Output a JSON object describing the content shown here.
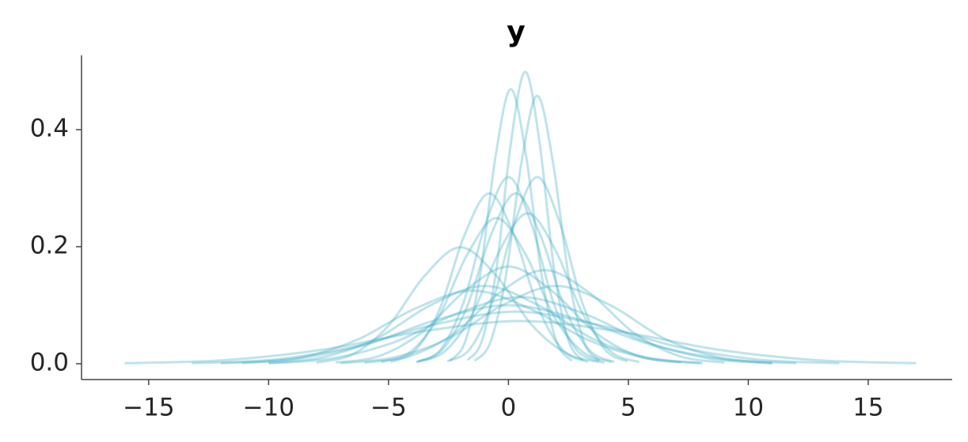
{
  "chart_data": {
    "type": "line",
    "title": "y",
    "color": "#46aec7",
    "line_alpha": 0.35,
    "xlim": [
      -17.8,
      18.5
    ],
    "ylim": [
      -0.027,
      0.527
    ],
    "xticks": [
      {
        "value": -15,
        "label": "−15"
      },
      {
        "value": -10,
        "label": "−10"
      },
      {
        "value": -5,
        "label": "−5"
      },
      0,
      5,
      10,
      15
    ],
    "yticks": [
      {
        "value": 0,
        "label": "0.0"
      },
      0.2,
      0.4
    ],
    "series": [
      {
        "x": [
          -1.7,
          -1.1,
          -0.5,
          0.1,
          0.7,
          1.3,
          1.9,
          2.5,
          3.1
        ],
        "values": [
          0.006,
          0.04,
          0.162,
          0.377,
          0.499,
          0.377,
          0.162,
          0.04,
          0.006
        ]
      },
      {
        "x": [
          -2.45,
          -1.81,
          -1.18,
          -0.54,
          0.1,
          0.74,
          1.38,
          2.01,
          2.65
        ],
        "values": [
          0.005,
          0.037,
          0.152,
          0.354,
          0.469,
          0.354,
          0.152,
          0.037,
          0.005
        ]
      },
      {
        "x": [
          -1.41,
          -0.76,
          -0.11,
          0.55,
          1.2,
          1.85,
          2.51,
          3.16,
          3.81
        ],
        "values": [
          0.005,
          0.036,
          0.149,
          0.346,
          0.458,
          0.346,
          0.149,
          0.036,
          0.005
        ]
      },
      {
        "x": [
          -2.55,
          -1.61,
          -0.68,
          0.26,
          1.2,
          2.14,
          3.08,
          4.01,
          4.95
        ],
        "values": [
          0.004,
          0.025,
          0.104,
          0.241,
          0.319,
          0.241,
          0.104,
          0.025,
          0.004
        ]
      },
      {
        "x": [
          -3.75,
          -2.81,
          -1.88,
          -0.94,
          0,
          0.94,
          1.88,
          2.81,
          3.75
        ],
        "values": [
          0.004,
          0.025,
          0.104,
          0.241,
          0.319,
          0.241,
          0.104,
          0.025,
          0.004
        ]
      },
      {
        "x": [
          -4.91,
          -3.88,
          -2.86,
          -1.83,
          -0.8,
          0.23,
          1.26,
          2.28,
          3.31
        ],
        "values": [
          0.003,
          0.023,
          0.094,
          0.22,
          0.291,
          0.22,
          0.094,
          0.023,
          0.003
        ]
      },
      {
        "x": [
          -3.81,
          -2.78,
          -1.76,
          -0.73,
          0.3,
          1.33,
          2.36,
          3.38,
          4.41
        ],
        "values": [
          0.003,
          0.023,
          0.094,
          0.22,
          0.291,
          0.22,
          0.094,
          0.023,
          0.003
        ]
      },
      {
        "x": [
          -5.3,
          -4.1,
          -2.9,
          -1.7,
          -0.5,
          0.7,
          1.9,
          3.1,
          4.3
        ],
        "values": [
          0.003,
          0.02,
          0.081,
          0.188,
          0.249,
          0.188,
          0.081,
          0.02,
          0.003
        ]
      },
      {
        "x": [
          -3.85,
          -2.69,
          -1.53,
          -0.36,
          0.8,
          1.96,
          3.13,
          4.29,
          5.45
        ],
        "values": [
          0.003,
          0.02,
          0.083,
          0.194,
          0.257,
          0.194,
          0.083,
          0.02,
          0.003
        ]
      },
      {
        "x": [
          -8,
          -6.5,
          -5,
          -3.5,
          -2,
          -0.5,
          1,
          2.5,
          4
        ],
        "values": [
          0.002,
          0.016,
          0.065,
          0.15,
          0.199,
          0.15,
          0.065,
          0.016,
          0.002
        ]
      },
      {
        "x": [
          -7.2,
          -5.4,
          -3.6,
          -1.8,
          0,
          1.8,
          3.6,
          5.4,
          7.2
        ],
        "values": [
          0.002,
          0.013,
          0.054,
          0.125,
          0.166,
          0.125,
          0.054,
          0.013,
          0.002
        ]
      },
      {
        "x": [
          -6,
          -4.13,
          -2.25,
          -0.38,
          1.5,
          3.38,
          5.25,
          7.13,
          9
        ],
        "values": [
          0.002,
          0.013,
          0.052,
          0.121,
          0.16,
          0.121,
          0.052,
          0.013,
          0.002
        ]
      },
      {
        "x": [
          -10,
          -7.75,
          -5.5,
          -3.25,
          -1,
          1.25,
          3.5,
          5.75,
          8
        ],
        "values": [
          0.001,
          0.011,
          0.043,
          0.1,
          0.133,
          0.1,
          0.043,
          0.011,
          0.001
        ]
      },
      {
        "x": [
          -10,
          -7.38,
          -4.75,
          -2.13,
          0.5,
          3.13,
          5.75,
          8.38,
          11
        ],
        "values": [
          0.001,
          0.009,
          0.037,
          0.086,
          0.114,
          0.086,
          0.037,
          0.009,
          0.001
        ]
      },
      {
        "x": [
          -12,
          -9,
          -6,
          -3,
          0,
          3,
          6,
          9,
          12
        ],
        "values": [
          0.001,
          0.008,
          0.032,
          0.075,
          0.1,
          0.075,
          0.032,
          0.008,
          0.001
        ]
      },
      {
        "x": [
          -11.1,
          -8.7,
          -6.3,
          -3.9,
          -1.5,
          0.9,
          3.3,
          5.7,
          8.1
        ],
        "values": [
          0.001,
          0.01,
          0.041,
          0.094,
          0.125,
          0.094,
          0.041,
          0.01,
          0.001
        ]
      },
      {
        "x": [
          -7,
          -4.75,
          -2.5,
          -0.25,
          2,
          4.25,
          6.5,
          8.75,
          11
        ],
        "values": [
          0.001,
          0.011,
          0.043,
          0.1,
          0.133,
          0.1,
          0.043,
          0.011,
          0.001
        ]
      },
      {
        "x": [
          -13.2,
          -9.83,
          -6.45,
          -3.08,
          0.3,
          3.68,
          7.05,
          10.43,
          13.8
        ],
        "values": [
          0.001,
          0.007,
          0.029,
          0.067,
          0.089,
          0.067,
          0.029,
          0.007,
          0.001
        ]
      },
      {
        "x": [
          -16,
          -11.88,
          -7.75,
          -3.63,
          0.5,
          4.63,
          8.75,
          12.88,
          17
        ],
        "values": [
          0.001,
          0.006,
          0.024,
          0.055,
          0.073,
          0.055,
          0.024,
          0.006,
          0.001
        ]
      }
    ]
  }
}
